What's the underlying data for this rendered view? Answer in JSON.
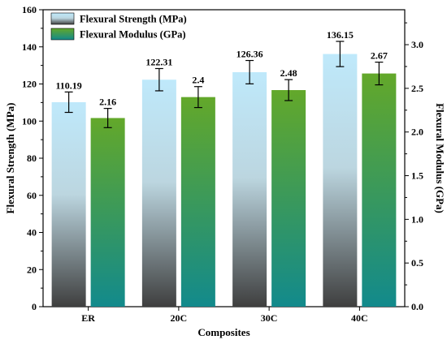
{
  "chart_data": {
    "type": "bar",
    "categories": [
      "ER",
      "20C",
      "30C",
      "40C"
    ],
    "series": [
      {
        "name": "Flexural Strength (MPa)",
        "axis": "left",
        "values": [
          110.19,
          122.31,
          126.36,
          136.15
        ],
        "errors": [
          5.5,
          6.0,
          6.3,
          6.8
        ],
        "labels": [
          "110.19",
          "122.31",
          "126.36",
          "136.15"
        ],
        "gradient": [
          "#bfe9fb",
          "#3f3f3f"
        ]
      },
      {
        "name": "Flexural Modulus (GPa)",
        "axis": "right",
        "values": [
          2.16,
          2.4,
          2.48,
          2.67
        ],
        "errors": [
          0.11,
          0.12,
          0.12,
          0.13
        ],
        "labels": [
          "2.16",
          "2.4",
          "2.48",
          "2.67"
        ],
        "gradient": [
          "#63a82a",
          "#128a8c"
        ]
      }
    ],
    "xlabel": "Composites",
    "ylabel_left": "Flexural Strength (MPa)",
    "ylabel_right": "Flexural Modulus (GPa)",
    "ylim_left": [
      0,
      160
    ],
    "yticks_left": [
      "0",
      "20",
      "40",
      "60",
      "80",
      "100",
      "120",
      "140",
      "160"
    ],
    "ylim_right": [
      0,
      3.4
    ],
    "yticks_right_values": [
      0,
      0.5,
      1.0,
      1.5,
      2.0,
      2.5,
      3.0
    ],
    "yticks_right": [
      "0.0",
      "0.5",
      "1.0",
      "1.5",
      "2.0",
      "2.5",
      "3.0"
    ],
    "grid": false,
    "legend_position": "top-left"
  }
}
